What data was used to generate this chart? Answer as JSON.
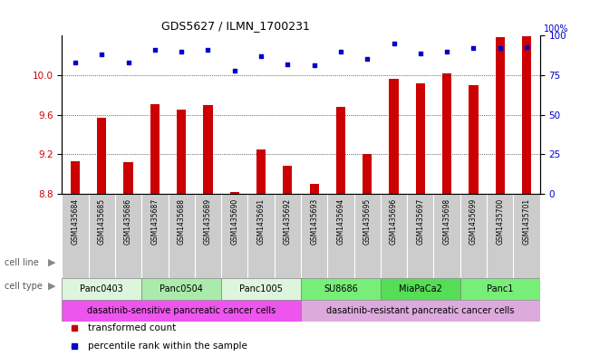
{
  "title": "GDS5627 / ILMN_1700231",
  "samples": [
    "GSM1435684",
    "GSM1435685",
    "GSM1435686",
    "GSM1435687",
    "GSM1435688",
    "GSM1435689",
    "GSM1435690",
    "GSM1435691",
    "GSM1435692",
    "GSM1435693",
    "GSM1435694",
    "GSM1435695",
    "GSM1435696",
    "GSM1435697",
    "GSM1435698",
    "GSM1435699",
    "GSM1435700",
    "GSM1435701"
  ],
  "transformed_count": [
    9.13,
    9.57,
    9.12,
    9.71,
    9.65,
    9.7,
    8.82,
    9.25,
    9.08,
    8.9,
    9.68,
    9.2,
    9.96,
    9.92,
    10.02,
    9.9,
    10.38,
    10.39
  ],
  "percentile_rank": [
    83,
    88,
    83,
    91,
    90,
    91,
    78,
    87,
    82,
    81,
    90,
    85,
    95,
    89,
    90,
    92,
    92,
    93
  ],
  "ylim_left": [
    8.8,
    10.4
  ],
  "ylim_right": [
    0,
    100
  ],
  "yticks_left": [
    8.8,
    9.2,
    9.6,
    10.0
  ],
  "yticks_right": [
    0,
    25,
    50,
    75,
    100
  ],
  "bar_color": "#CC0000",
  "scatter_color": "#0000CC",
  "cell_lines": [
    {
      "name": "Panc0403",
      "start": 0,
      "end": 2,
      "color": "#ddf5dd"
    },
    {
      "name": "Panc0504",
      "start": 3,
      "end": 5,
      "color": "#aaeaaa"
    },
    {
      "name": "Panc1005",
      "start": 6,
      "end": 8,
      "color": "#ddf5dd"
    },
    {
      "name": "SU8686",
      "start": 9,
      "end": 11,
      "color": "#77ee77"
    },
    {
      "name": "MiaPaCa2",
      "start": 12,
      "end": 14,
      "color": "#55dd55"
    },
    {
      "name": "Panc1",
      "start": 15,
      "end": 17,
      "color": "#77ee77"
    }
  ],
  "cell_types": [
    {
      "name": "dasatinib-sensitive pancreatic cancer cells",
      "start": 0,
      "end": 8,
      "color": "#ee55ee"
    },
    {
      "name": "dasatinib-resistant pancreatic cancer cells",
      "start": 9,
      "end": 17,
      "color": "#ddaadd"
    }
  ],
  "sample_bg_color": "#cccccc",
  "legend_items": [
    {
      "label": "transformed count",
      "color": "#CC0000"
    },
    {
      "label": "percentile rank within the sample",
      "color": "#0000CC"
    }
  ],
  "background_color": "#ffffff"
}
